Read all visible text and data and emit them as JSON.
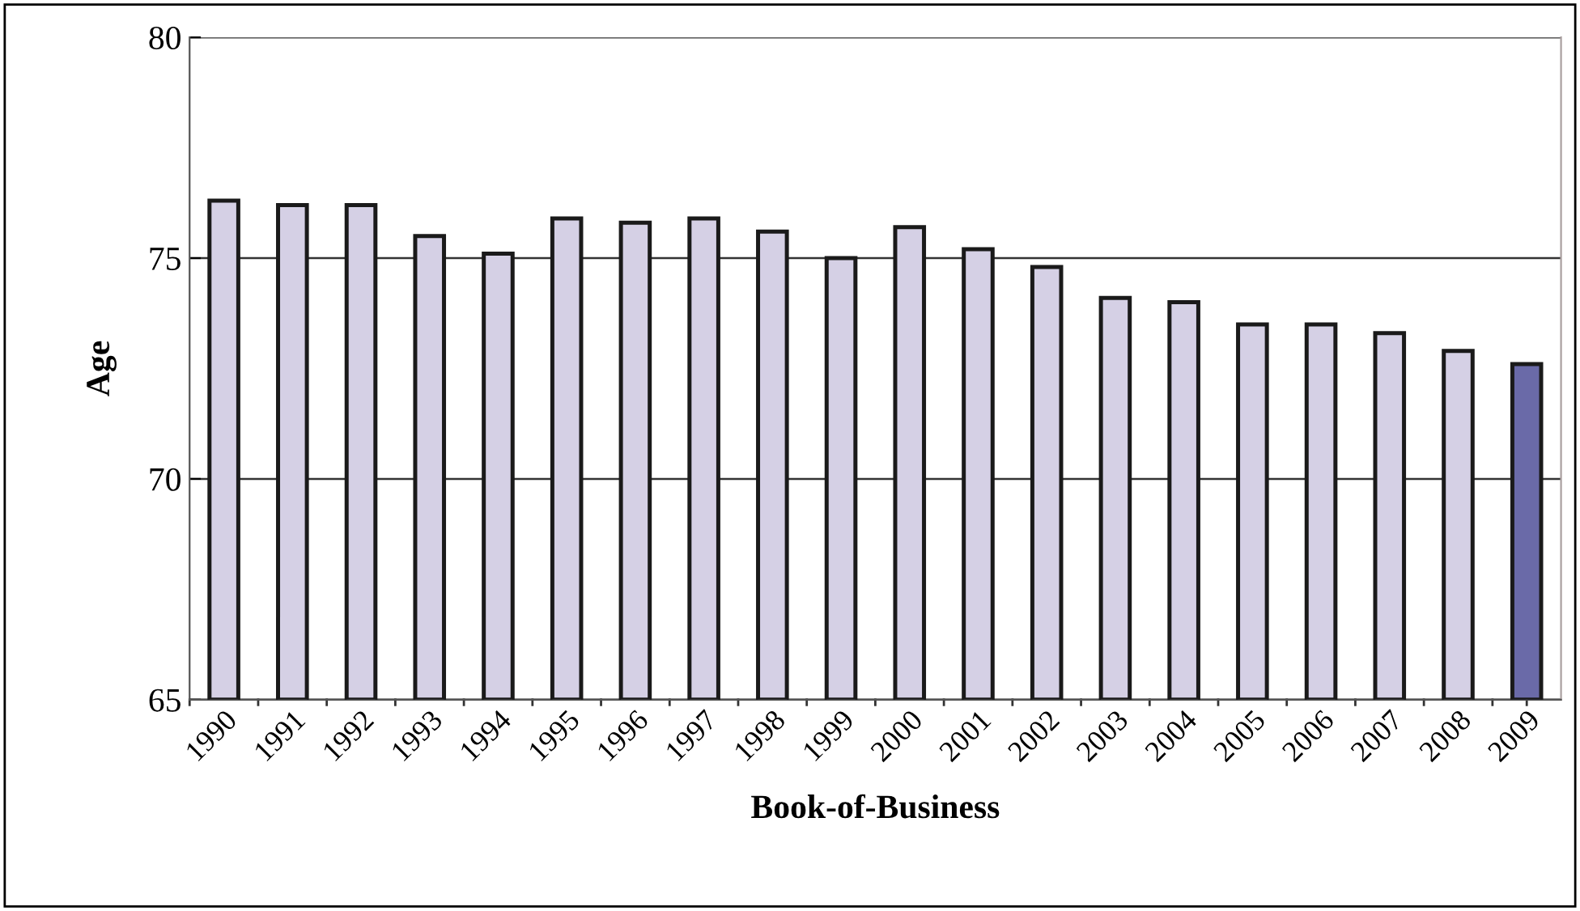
{
  "chart_data": {
    "type": "bar",
    "xlabel": "Book-of-Business",
    "ylabel": "Age",
    "categories": [
      "1990",
      "1991",
      "1992",
      "1993",
      "1994",
      "1995",
      "1996",
      "1997",
      "1998",
      "1999",
      "2000",
      "2001",
      "2002",
      "2003",
      "2004",
      "2005",
      "2006",
      "2007",
      "2008",
      "2009"
    ],
    "values": [
      76.3,
      76.2,
      76.2,
      75.5,
      75.1,
      75.9,
      75.8,
      75.9,
      75.6,
      75.0,
      75.7,
      75.2,
      74.8,
      74.1,
      74.0,
      73.5,
      73.5,
      73.3,
      72.9,
      72.6
    ],
    "colors": [
      "#d5d0e5",
      "#d5d0e5",
      "#d5d0e5",
      "#d5d0e5",
      "#d5d0e5",
      "#d5d0e5",
      "#d5d0e5",
      "#d5d0e5",
      "#d5d0e5",
      "#d5d0e5",
      "#d5d0e5",
      "#d5d0e5",
      "#d5d0e5",
      "#d5d0e5",
      "#d5d0e5",
      "#d5d0e5",
      "#d5d0e5",
      "#d5d0e5",
      "#d5d0e5",
      "#6a6aa8"
    ],
    "ylim": [
      65,
      80
    ],
    "yticks": [
      65,
      70,
      75,
      80
    ],
    "grid": "y",
    "legend": false
  }
}
